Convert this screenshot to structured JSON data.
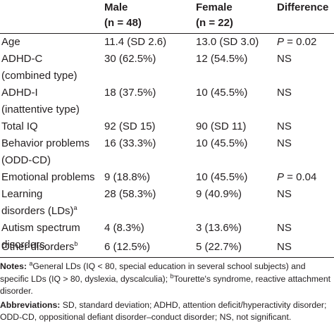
{
  "header": {
    "col_male": "Male",
    "col_male_n": "(n = 48)",
    "col_female": "Female",
    "col_female_n": "(n = 22)",
    "col_diff": "Difference"
  },
  "rows": [
    {
      "label1": "Age",
      "label2": "",
      "male": "11.4 (SD 2.6)",
      "female": "13.0 (SD 3.0)",
      "diff_prefix": "P",
      "diff": " = 0.02"
    },
    {
      "label1": "ADHD-C",
      "label2": "(combined type)",
      "male": "30 (62.5%)",
      "female": "12 (54.5%)",
      "diff_prefix": "",
      "diff": "NS"
    },
    {
      "label1": "ADHD-I",
      "label2": "(inattentive type)",
      "male": "18 (37.5%)",
      "female": "10 (45.5%)",
      "diff_prefix": "",
      "diff": "NS"
    },
    {
      "label1": "Total IQ",
      "label2": "",
      "male": "92 (SD 15)",
      "female": "90 (SD 11)",
      "diff_prefix": "",
      "diff": "NS"
    },
    {
      "label1": "Behavior problems",
      "label2": "(ODD-CD)",
      "male": "16 (33.3%)",
      "female": "10 (45.5%)",
      "diff_prefix": "",
      "diff": "NS"
    },
    {
      "label1": "Emotional problems",
      "label2": "",
      "male": "9 (18.8%)",
      "female": "10 (45.5%)",
      "diff_prefix": "P",
      "diff": " = 0.04"
    },
    {
      "label1": "Learning",
      "label2": "disorders (LDs)",
      "label2_sup": "a",
      "male": "28 (58.3%)",
      "female": "9 (40.9%)",
      "diff_prefix": "",
      "diff": "NS"
    },
    {
      "label1": "Autism spectrum",
      "label2": "disorders",
      "male": "4 (8.3%)",
      "female": "3 (13.6%)",
      "diff_prefix": "",
      "diff": "NS"
    },
    {
      "label1": "Other disorders",
      "label1_sup": "b",
      "label2": "",
      "male": "6 (12.5%)",
      "female": "5 (22.7%)",
      "diff_prefix": "",
      "diff": "NS"
    }
  ],
  "notes": {
    "notes_label": "Notes:",
    "notes_sup_a": "a",
    "notes_text_a": "General LDs (IQ < 80, special education in several school subjects) and specific LDs (IQ > 80, dyslexia, dyscalculia);",
    "notes_sup_b": "b",
    "notes_text_b": "Tourette's syndrome, reactive attachment disorder.",
    "abbr_label": "Abbreviations:",
    "abbr_text": "SD, standard deviation; ADHD, attention deficit/hyperactivity disorder; ODD-CD, oppositional defiant disorder–conduct disorder; NS, not significant."
  }
}
